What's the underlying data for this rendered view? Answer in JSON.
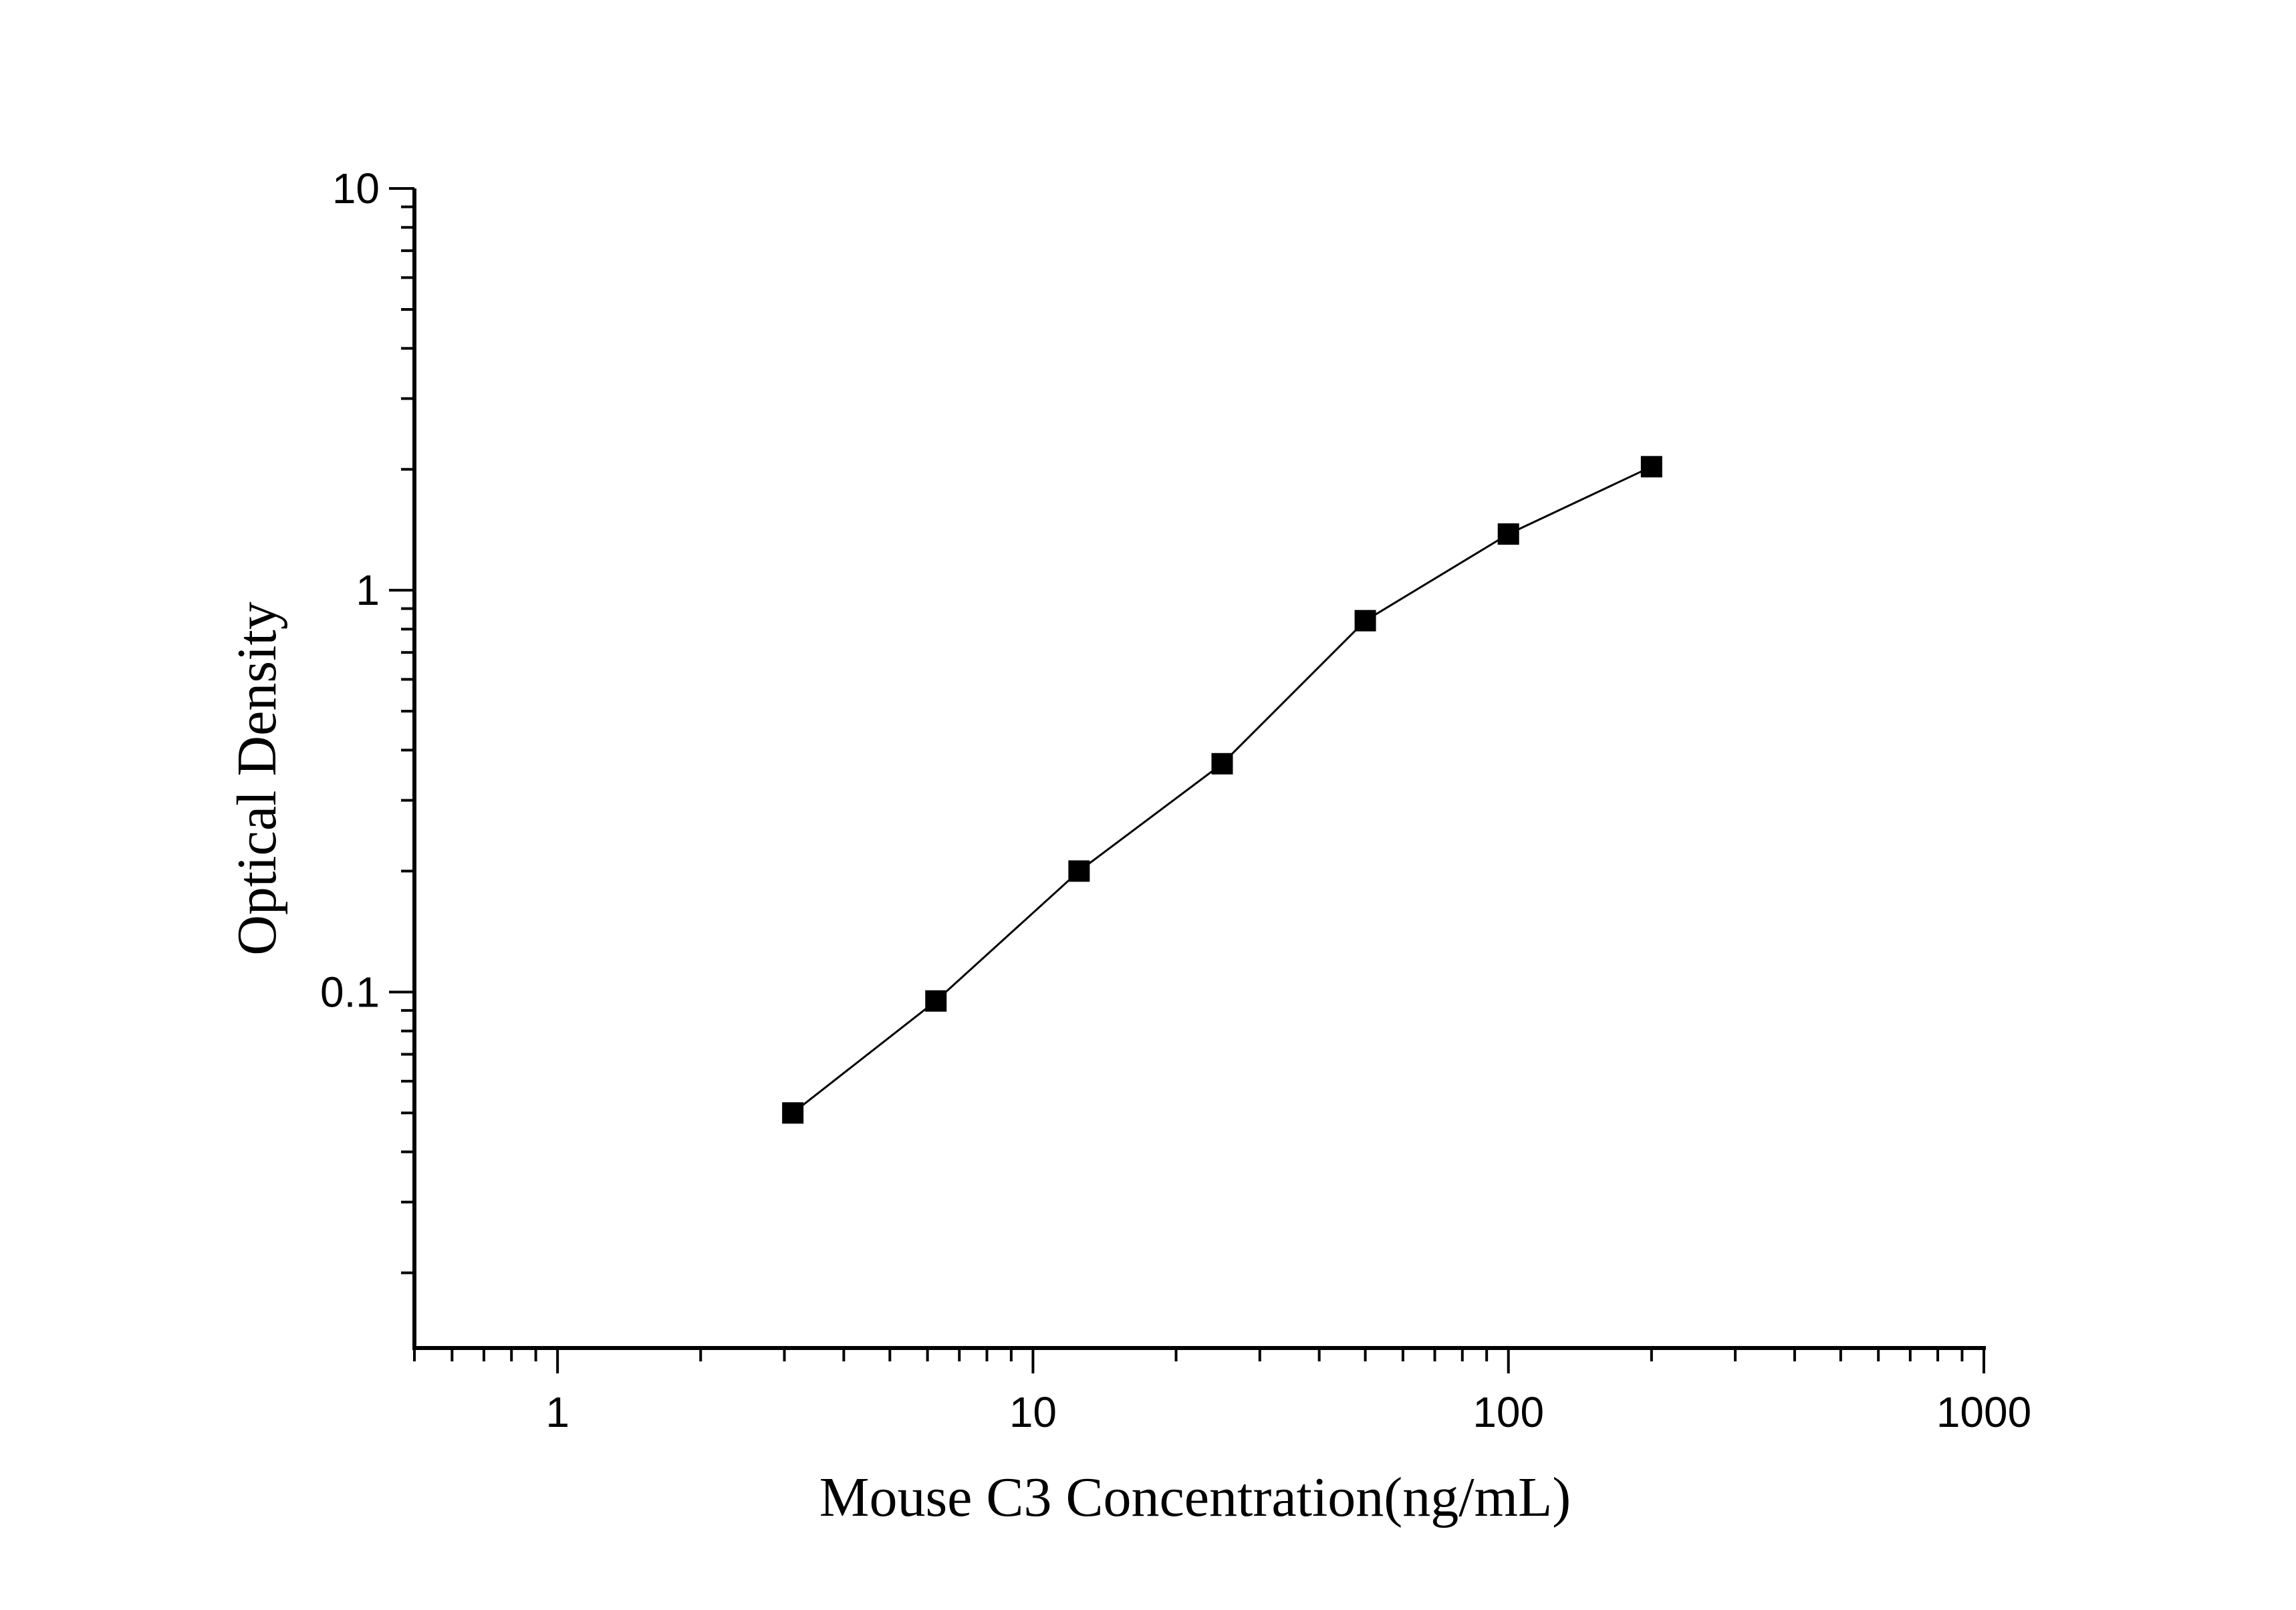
{
  "chart_data": {
    "type": "scatter",
    "xlabel": "Mouse C3 Concentration(ng/mL)",
    "ylabel": "Optical Density",
    "xscale": "log",
    "yscale": "log",
    "xlim": [
      0.5,
      1000
    ],
    "ylim": [
      0.013,
      10
    ],
    "x_ticks": [
      "1",
      "10",
      "100",
      "1000"
    ],
    "y_ticks": [
      "0.1",
      "1",
      "10"
    ],
    "grid": false,
    "legend": "none",
    "marker": "square",
    "line": "connected",
    "color": "#000000",
    "series": [
      {
        "x": [
          3.125,
          6.25,
          12.5,
          25,
          50,
          100,
          200
        ],
        "y": [
          0.05,
          0.095,
          0.2,
          0.37,
          0.84,
          1.38,
          2.03
        ]
      }
    ]
  }
}
